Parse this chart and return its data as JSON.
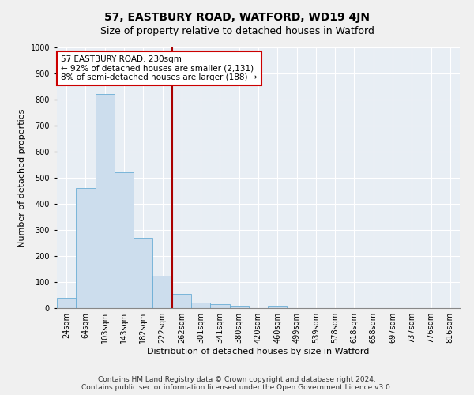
{
  "title": "57, EASTBURY ROAD, WATFORD, WD19 4JN",
  "subtitle": "Size of property relative to detached houses in Watford",
  "xlabel": "Distribution of detached houses by size in Watford",
  "ylabel": "Number of detached properties",
  "footer_line1": "Contains HM Land Registry data © Crown copyright and database right 2024.",
  "footer_line2": "Contains public sector information licensed under the Open Government Licence v3.0.",
  "categories": [
    "24sqm",
    "64sqm",
    "103sqm",
    "143sqm",
    "182sqm",
    "222sqm",
    "262sqm",
    "301sqm",
    "341sqm",
    "380sqm",
    "420sqm",
    "460sqm",
    "499sqm",
    "539sqm",
    "578sqm",
    "618sqm",
    "658sqm",
    "697sqm",
    "737sqm",
    "776sqm",
    "816sqm"
  ],
  "values": [
    40,
    460,
    820,
    520,
    270,
    125,
    55,
    22,
    14,
    10,
    0,
    10,
    0,
    0,
    0,
    0,
    0,
    0,
    0,
    0,
    0
  ],
  "bar_color": "#ccdded",
  "bar_edge_color": "#6aadd5",
  "vline_index": 5.5,
  "annotation_text_line1": "57 EASTBURY ROAD: 230sqm",
  "annotation_text_line2": "← 92% of detached houses are smaller (2,131)",
  "annotation_text_line3": "8% of semi-detached houses are larger (188) →",
  "annotation_box_color": "#ffffff",
  "annotation_box_edge_color": "#cc0000",
  "annotation_text_color": "#000000",
  "vline_color": "#aa0000",
  "ylim": [
    0,
    1000
  ],
  "yticks": [
    0,
    100,
    200,
    300,
    400,
    500,
    600,
    700,
    800,
    900,
    1000
  ],
  "background_color": "#e8eef4",
  "plot_bg_color": "#dde8f0",
  "grid_color": "#ffffff",
  "title_fontsize": 10,
  "subtitle_fontsize": 9,
  "axis_label_fontsize": 8,
  "tick_fontsize": 7,
  "footer_fontsize": 6.5,
  "annotation_fontsize": 7.5
}
